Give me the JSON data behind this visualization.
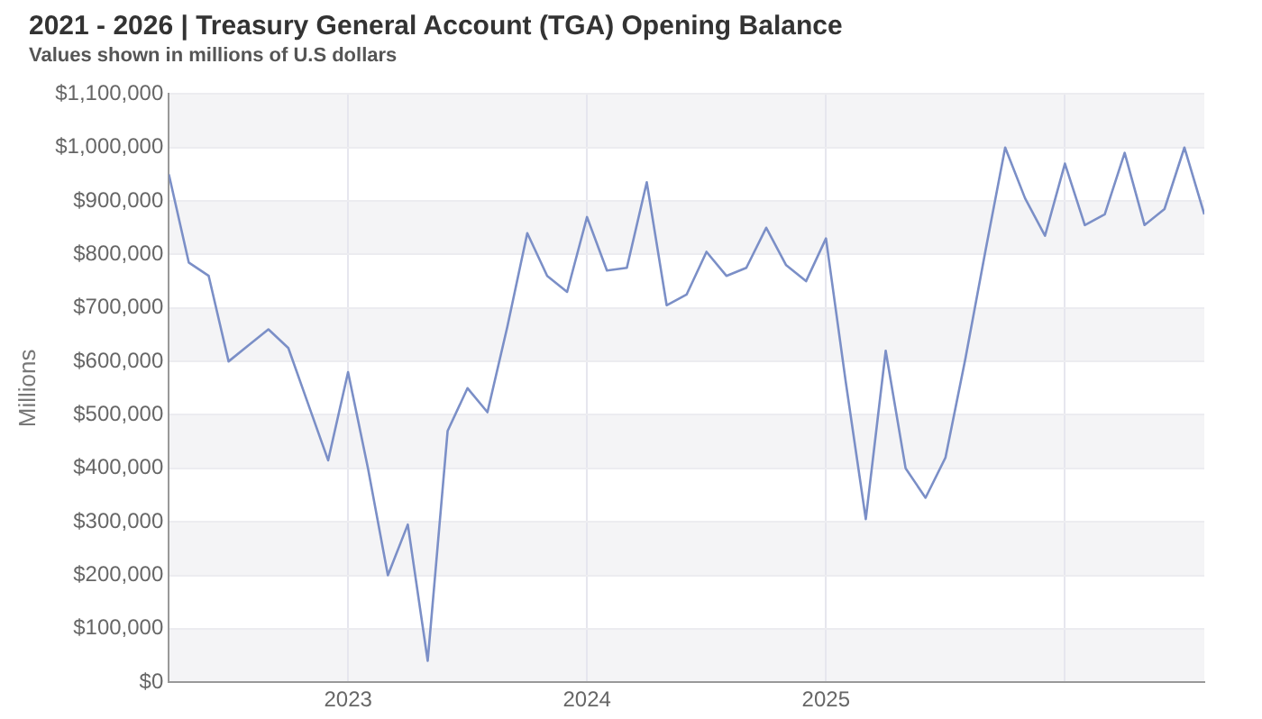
{
  "chart_data": {
    "type": "line",
    "title": "2021 - 2026 | Treasury General Account (TGA) Opening Balance",
    "subtitle": "Values shown in millions of U.S dollars",
    "ylabel": "Millions",
    "x": [
      "2022-04",
      "2022-05",
      "2022-06",
      "2022-07",
      "2022-08",
      "2022-09",
      "2022-10",
      "2022-11",
      "2022-12",
      "2023-01",
      "2023-02",
      "2023-03",
      "2023-04",
      "2023-05",
      "2023-06",
      "2023-07",
      "2023-08",
      "2023-09",
      "2023-10",
      "2023-11",
      "2023-12",
      "2024-01",
      "2024-02",
      "2024-03",
      "2024-04",
      "2024-05",
      "2024-06",
      "2024-07",
      "2024-08",
      "2024-09",
      "2024-10",
      "2024-11",
      "2024-12",
      "2025-01",
      "2025-02",
      "2025-03",
      "2025-04",
      "2025-05",
      "2025-06",
      "2025-07",
      "2025-08",
      "2025-09",
      "2025-10",
      "2025-11",
      "2025-12",
      "2026-01",
      "2026-02",
      "2026-03",
      "2026-04",
      "2026-05",
      "2026-06",
      "2026-07",
      "2026-08"
    ],
    "series": [
      {
        "color": "#7b8fc7",
        "values": [
          950000,
          785000,
          760000,
          600000,
          630000,
          660000,
          625000,
          520000,
          415000,
          580000,
          400000,
          200000,
          295000,
          40000,
          470000,
          550000,
          505000,
          665000,
          840000,
          760000,
          730000,
          870000,
          770000,
          775000,
          935000,
          705000,
          725000,
          805000,
          760000,
          775000,
          850000,
          780000,
          750000,
          830000,
          560000,
          305000,
          620000,
          400000,
          345000,
          420000,
          605000,
          805000,
          1000000,
          905000,
          835000,
          970000,
          855000,
          875000,
          990000,
          855000,
          885000,
          1000000,
          875000
        ]
      }
    ],
    "xlim": [
      "2022-04",
      "2026-08"
    ],
    "xticks": [
      {
        "value": "2023",
        "label": "2023"
      },
      {
        "value": "2024",
        "label": "2024"
      },
      {
        "value": "2025",
        "label": "2025"
      },
      {
        "value": "2026",
        "label": null
      }
    ],
    "ylim": [
      0,
      1100000
    ],
    "yticks": [
      {
        "value": 0,
        "label": "$0"
      },
      {
        "value": 100000,
        "label": "$100,000"
      },
      {
        "value": 200000,
        "label": "$200,000"
      },
      {
        "value": 300000,
        "label": "$300,000"
      },
      {
        "value": 400000,
        "label": "$400,000"
      },
      {
        "value": 500000,
        "label": "$500,000"
      },
      {
        "value": 600000,
        "label": "$600,000"
      },
      {
        "value": 700000,
        "label": "$700,000"
      },
      {
        "value": 800000,
        "label": "$800,000"
      },
      {
        "value": 900000,
        "label": "$900,000"
      },
      {
        "value": 1000000,
        "label": "$1,000,000"
      },
      {
        "value": 1100000,
        "label": "$1,100,000"
      }
    ],
    "grid": true,
    "legend": false,
    "marker": "none",
    "line_style": "solid"
  }
}
